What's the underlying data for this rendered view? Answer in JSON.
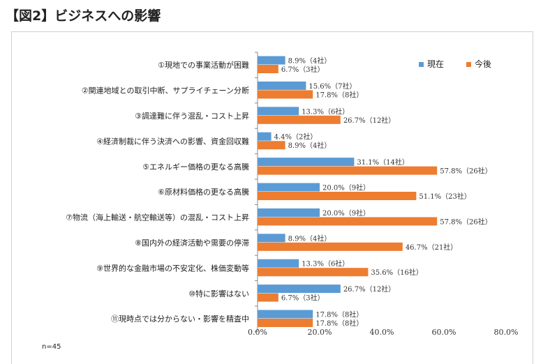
{
  "title": "【図2】ビジネスへの影響",
  "chart_data": {
    "type": "bar",
    "orientation": "horizontal",
    "categories": [
      "①現地での事業活動が困難",
      "②関連地域との取引中断、サプライチェーン分断",
      "③調達難に伴う混乱・コスト上昇",
      "④経済制裁に伴う決済への影響、資金回収難",
      "⑤エネルギー価格の更なる高騰",
      "⑥原材料価格の更なる高騰",
      "⑦物流（海上輸送・航空輸送等）の混乱・コスト上昇",
      "⑧国内外の経済活動や需要の停滞",
      "⑨世界的な金融市場の不安定化、株価変動等",
      "⑩特に影響はない",
      "⑪現時点では分からない・影響を精査中"
    ],
    "series": [
      {
        "name": "現在",
        "color": "#5B9BD5",
        "values": [
          8.9,
          15.6,
          13.3,
          4.4,
          31.1,
          20.0,
          20.0,
          8.9,
          13.3,
          26.7,
          17.8
        ],
        "labels": [
          "8.9%（4社）",
          "15.6%（7社）",
          "13.3%（6社）",
          "4.4%（2社）",
          "31.1%（14社）",
          "20.0%（9社）",
          "20.0%（9社）",
          "8.9%（4社）",
          "13.3%（6社）",
          "26.7%（12社）",
          "17.8%（8社）"
        ]
      },
      {
        "name": "今後",
        "color": "#ED7D31",
        "values": [
          6.7,
          17.8,
          26.7,
          8.9,
          57.8,
          51.1,
          57.8,
          46.7,
          35.6,
          6.7,
          17.8
        ],
        "labels": [
          "6.7%（3社）",
          "17.8%（8社）",
          "26.7%（12社）",
          "8.9%（4社）",
          "57.8%（26社）",
          "51.1%（23社）",
          "57.8%（26社）",
          "46.7%（21社）",
          "35.6%（16社）",
          "6.7%（3社）",
          "17.8%（8社）"
        ]
      }
    ],
    "xlim": [
      0,
      80
    ],
    "ticks": [
      "0.0%",
      "20.0%",
      "40.0%",
      "60.0%",
      "80.0%"
    ],
    "tick_values": [
      0,
      20,
      40,
      60,
      80
    ],
    "legend_position": "top-right",
    "grid": false,
    "note": "n=45"
  }
}
